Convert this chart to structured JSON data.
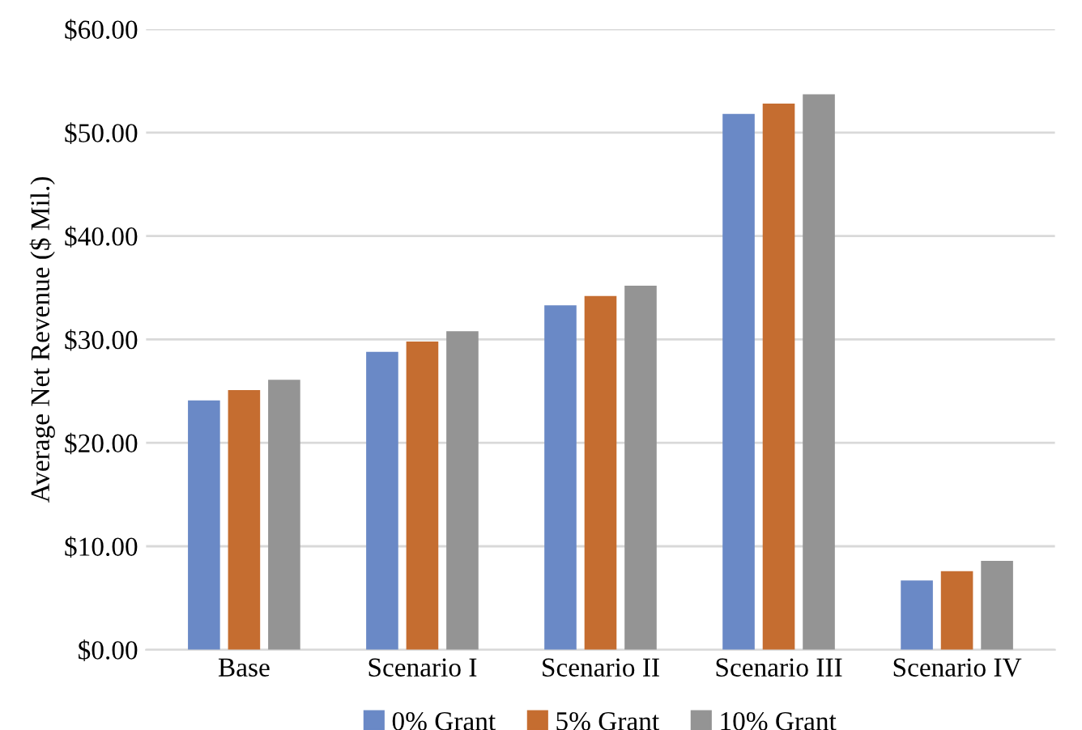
{
  "chart_data": {
    "type": "bar",
    "ylabel": "Average Net Revenue ($ Mil.)",
    "categories": [
      "Base",
      "Scenario I",
      "Scenario II",
      "Scenario III",
      "Scenario IV"
    ],
    "series": [
      {
        "name": "0% Grant",
        "color": "#6a89c6",
        "values": [
          24.1,
          28.8,
          33.3,
          51.8,
          6.7
        ]
      },
      {
        "name": "5% Grant",
        "color": "#c56d30",
        "values": [
          25.1,
          29.8,
          34.2,
          52.8,
          7.6
        ]
      },
      {
        "name": "10% Grant",
        "color": "#949494",
        "values": [
          26.1,
          30.8,
          35.2,
          53.7,
          8.6
        ]
      }
    ],
    "ylim": [
      0,
      60
    ],
    "yticks": [
      {
        "value": 0,
        "label": "$0.00"
      },
      {
        "value": 10,
        "label": "$10.00"
      },
      {
        "value": 20,
        "label": "$20.00"
      },
      {
        "value": 30,
        "label": "$30.00"
      },
      {
        "value": 40,
        "label": "$40.00"
      },
      {
        "value": 50,
        "label": "$50.00"
      },
      {
        "value": 60,
        "label": "$60.00"
      }
    ],
    "grid": "y",
    "legend": "bottom"
  }
}
